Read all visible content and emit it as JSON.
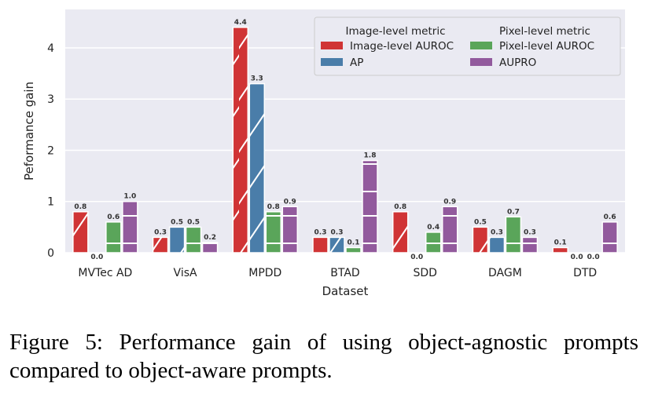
{
  "chart_data": {
    "type": "bar",
    "xlabel": "Dataset",
    "ylabel": "Peformance gain",
    "ylim": [
      0,
      4.75
    ],
    "yticks": [
      0,
      1,
      2,
      3,
      4
    ],
    "grid": true,
    "legend_placement": "top-right",
    "legend_groups": [
      "Image-level metric",
      "Pixel-level metric"
    ],
    "categories": [
      "MVTec AD",
      "VisA",
      "MPDD",
      "BTAD",
      "SDD",
      "DAGM",
      "DTD"
    ],
    "series": [
      {
        "name": "Image-level AUROC",
        "color": "#d03435",
        "hatch": "diagonal",
        "values": [
          0.8,
          0.3,
          4.4,
          0.3,
          0.8,
          0.5,
          0.1
        ]
      },
      {
        "name": "AP",
        "color": "#4a7da9",
        "hatch": "diagonal",
        "values": [
          0.0,
          0.5,
          3.3,
          0.3,
          0.0,
          0.3,
          0.0
        ]
      },
      {
        "name": "Pixel-level AUROC",
        "color": "#5aa55a",
        "hatch": "horizontal",
        "values": [
          0.6,
          0.5,
          0.8,
          0.1,
          0.4,
          0.7,
          0.0
        ]
      },
      {
        "name": "AUPRO",
        "color": "#925a9d",
        "hatch": "horizontal",
        "values": [
          1.0,
          0.2,
          0.9,
          1.8,
          0.9,
          0.3,
          0.6
        ]
      }
    ]
  },
  "caption": "Figure 5:  Performance gain of using object-agnostic prompts compared to object-aware prompts."
}
